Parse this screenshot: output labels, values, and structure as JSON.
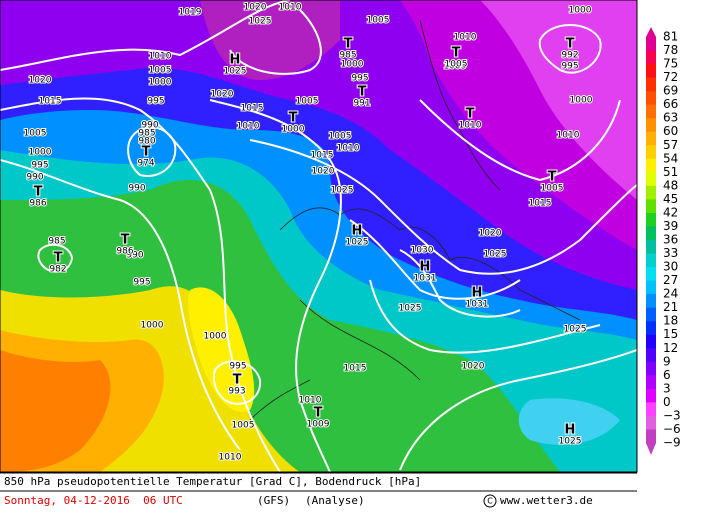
{
  "map": {
    "isobar_labels": [
      1020,
      1015,
      1005,
      1000,
      995,
      990,
      985,
      990,
      995,
      1000,
      1000,
      995,
      1005,
      1010,
      1010,
      1015,
      1020,
      1025,
      1025,
      1030,
      1025,
      1020,
      1025,
      1020,
      1015,
      1010,
      1005,
      1005,
      1010,
      1015,
      1020,
      1025,
      1020,
      1010,
      1019,
      1010,
      1005,
      1000,
      995,
      990,
      985,
      980,
      990,
      1005,
      995,
      1000,
      1010,
      1000,
      1010,
      1000,
      995,
      1015,
      1005
    ],
    "centers": [
      {
        "symbol": "T",
        "pressure": 986
      },
      {
        "symbol": "T",
        "pressure": 982
      },
      {
        "symbol": "T",
        "pressure": 986
      },
      {
        "symbol": "T",
        "pressure": 993
      },
      {
        "symbol": "T",
        "pressure": 1009
      },
      {
        "symbol": "H",
        "pressure": 1025
      },
      {
        "symbol": "H",
        "pressure": 1031
      },
      {
        "symbol": "H",
        "pressure": 1031
      },
      {
        "symbol": "H",
        "pressure": 1025
      },
      {
        "symbol": "T",
        "pressure": 1000
      },
      {
        "symbol": "H",
        "pressure": 1025
      },
      {
        "symbol": "T",
        "pressure": 974
      },
      {
        "symbol": "T",
        "pressure": 991
      },
      {
        "symbol": "T",
        "pressure": 1005
      },
      {
        "symbol": "T",
        "pressure": 1010
      },
      {
        "symbol": "T",
        "pressure": 992
      },
      {
        "symbol": "T",
        "pressure": 1005
      },
      {
        "symbol": "T",
        "pressure": 985
      }
    ]
  },
  "colorbar": {
    "labels": [
      "81",
      "78",
      "75",
      "72",
      "69",
      "66",
      "63",
      "60",
      "57",
      "54",
      "51",
      "48",
      "45",
      "42",
      "39",
      "36",
      "33",
      "30",
      "27",
      "24",
      "21",
      "18",
      "15",
      "12",
      "9",
      "6",
      "3",
      "0",
      "−3",
      "−6",
      "−9"
    ],
    "colors": [
      "#e00090",
      "#ff0050",
      "#ff1010",
      "#ff3000",
      "#ff5000",
      "#ff7000",
      "#ff9000",
      "#ffb000",
      "#ffd000",
      "#fff000",
      "#e0ff00",
      "#a0f000",
      "#60e000",
      "#20d020",
      "#00c060",
      "#00c0a0",
      "#00d0d0",
      "#00e0f0",
      "#00c0ff",
      "#0090ff",
      "#0060ff",
      "#0030ff",
      "#2000ff",
      "#5000ff",
      "#8000ff",
      "#b000ff",
      "#e000ff",
      "#ff40ff",
      "#e060e0",
      "#c040c0"
    ]
  },
  "footer": {
    "description": "850 hPa pseudopotentielle Temperatur [Grad C], Bodendruck [hPa]",
    "date": "Sonntag, 04-12-2016  06 UTC",
    "model": "(GFS)",
    "run": "(Analyse)",
    "site": "www.wetter3.de"
  }
}
